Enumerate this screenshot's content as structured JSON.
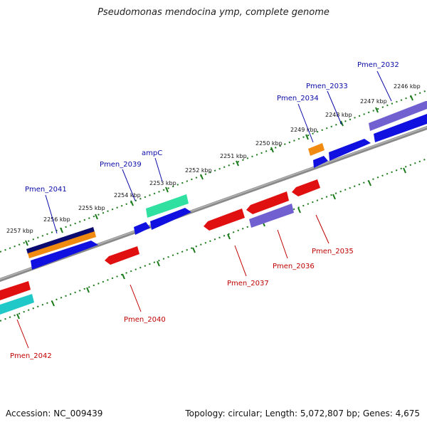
{
  "title": "Pseudomonas mendocina ymp, complete genome",
  "accession": "Accession: NC_009439",
  "summary": "Topology: circular; Length: 5,072,807 bp; Genes: 4,675",
  "colors": {
    "backbone": "#8a8a8a",
    "tick": "#1a7a1a",
    "forward_label": "#0a0aa8",
    "reverse_label": "#c00000",
    "blue": "#1010e0",
    "navy": "#0a0a70",
    "orange": "#f08a10",
    "red": "#e01010",
    "cyan": "#20c8c8",
    "green": "#30e0a0",
    "purple": "#7060d0"
  },
  "scale_labels": [
    "2246 kbp",
    "2247 kbp",
    "2248 kbp",
    "2249 kbp",
    "2250 kbp",
    "2251 kbp",
    "2252 kbp",
    "2253 kbp",
    "2254 kbp",
    "2255 kbp",
    "2256 kbp",
    "2257 kbp"
  ],
  "gene_labels": {
    "Pmen_2032": "Pmen_2032",
    "Pmen_2033": "Pmen_2033",
    "Pmen_2034": "Pmen_2034",
    "ampC": "ampC",
    "Pmen_2039": "Pmen_2039",
    "Pmen_2041": "Pmen_2041",
    "Pmen_2035": "Pmen_2035",
    "Pmen_2036": "Pmen_2036",
    "Pmen_2037": "Pmen_2037",
    "Pmen_2040": "Pmen_2040",
    "Pmen_2042": "Pmen_2042"
  }
}
